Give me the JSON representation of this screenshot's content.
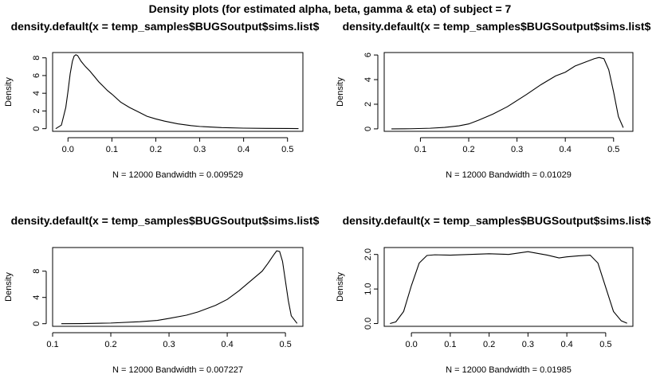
{
  "figure": {
    "title": "Density plots (for estimated alpha, beta, gamma & eta) of subject = 7"
  },
  "chart_data": [
    {
      "type": "line",
      "title": "density.default(x = temp_samples$BUGSoutput$sims.list$",
      "xlabel": "N = 12000   Bandwidth = 0.009529",
      "ylabel": "Density",
      "xlim": [
        -0.035,
        0.535
      ],
      "ylim": [
        -0.3,
        8.6
      ],
      "xticks": [
        0,
        0.1,
        0.2,
        0.3,
        0.4,
        0.5
      ],
      "xtick_labels": [
        "0.0",
        "0.1",
        "0.2",
        "0.3",
        "0.4",
        "0.5"
      ],
      "yticks": [
        0,
        2,
        4,
        6,
        8
      ],
      "ytick_labels": [
        "0",
        "2",
        "4",
        "6",
        "8"
      ],
      "x": [
        -0.028,
        -0.015,
        -0.005,
        0.0,
        0.005,
        0.01,
        0.014,
        0.018,
        0.022,
        0.03,
        0.04,
        0.05,
        0.06,
        0.07,
        0.08,
        0.09,
        0.1,
        0.12,
        0.14,
        0.16,
        0.18,
        0.2,
        0.22,
        0.25,
        0.28,
        0.3,
        0.35,
        0.4,
        0.45,
        0.5,
        0.525
      ],
      "y": [
        0.0,
        0.4,
        2.4,
        4.2,
        6.2,
        7.6,
        8.2,
        8.35,
        8.25,
        7.6,
        7.0,
        6.5,
        5.9,
        5.3,
        4.8,
        4.3,
        3.9,
        3.0,
        2.4,
        1.9,
        1.4,
        1.1,
        0.85,
        0.55,
        0.35,
        0.25,
        0.12,
        0.06,
        0.03,
        0.02,
        0.01
      ]
    },
    {
      "type": "line",
      "title": "density.default(x = temp_samples$BUGSoutput$sims.list$",
      "xlabel": "N = 12000   Bandwidth = 0.01029",
      "ylabel": "Density",
      "xlim": [
        0.025,
        0.54
      ],
      "ylim": [
        -0.2,
        6.2
      ],
      "xticks": [
        0.1,
        0.2,
        0.3,
        0.4,
        0.5
      ],
      "xtick_labels": [
        "0.1",
        "0.2",
        "0.3",
        "0.4",
        "0.5"
      ],
      "yticks": [
        0,
        2,
        4,
        6
      ],
      "ytick_labels": [
        "0",
        "2",
        "4",
        "6"
      ],
      "x": [
        0.04,
        0.08,
        0.12,
        0.15,
        0.18,
        0.2,
        0.22,
        0.25,
        0.28,
        0.3,
        0.32,
        0.35,
        0.38,
        0.4,
        0.42,
        0.44,
        0.46,
        0.47,
        0.48,
        0.49,
        0.5,
        0.51,
        0.52
      ],
      "y": [
        0.0,
        0.01,
        0.05,
        0.12,
        0.25,
        0.4,
        0.7,
        1.2,
        1.8,
        2.3,
        2.8,
        3.6,
        4.3,
        4.6,
        5.1,
        5.4,
        5.7,
        5.8,
        5.7,
        4.8,
        3.0,
        1.0,
        0.1
      ]
    },
    {
      "type": "line",
      "title": "density.default(x = temp_samples$BUGSoutput$sims.list$",
      "xlabel": "N = 12000   Bandwidth = 0.007227",
      "ylabel": "Density",
      "xlim": [
        0.1,
        0.53
      ],
      "ylim": [
        -0.4,
        11.6
      ],
      "xticks": [
        0.1,
        0.2,
        0.3,
        0.4,
        0.5
      ],
      "xtick_labels": [
        "0.1",
        "0.2",
        "0.3",
        "0.4",
        "0.5"
      ],
      "yticks": [
        0,
        4,
        8
      ],
      "ytick_labels": [
        "0",
        "4",
        "8"
      ],
      "x": [
        0.115,
        0.15,
        0.2,
        0.25,
        0.28,
        0.3,
        0.33,
        0.35,
        0.38,
        0.4,
        0.42,
        0.44,
        0.46,
        0.47,
        0.48,
        0.485,
        0.49,
        0.495,
        0.5,
        0.505,
        0.51,
        0.52
      ],
      "y": [
        0.0,
        0.02,
        0.1,
        0.3,
        0.5,
        0.8,
        1.3,
        1.8,
        2.8,
        3.7,
        5.0,
        6.5,
        8.0,
        9.2,
        10.5,
        11.1,
        11.0,
        9.5,
        6.5,
        3.5,
        1.2,
        0.05
      ]
    },
    {
      "type": "line",
      "title": "density.default(x = temp_samples$BUGSoutput$sims.list$",
      "xlabel": "N = 12000   Bandwidth = 0.01985",
      "ylabel": "Density",
      "xlim": [
        -0.07,
        0.57
      ],
      "ylim": [
        -0.08,
        2.2
      ],
      "xticks": [
        0,
        0.1,
        0.2,
        0.3,
        0.4,
        0.5
      ],
      "xtick_labels": [
        "0.0",
        "0.1",
        "0.2",
        "0.3",
        "0.4",
        "0.5"
      ],
      "yticks": [
        0,
        1,
        2
      ],
      "ytick_labels": [
        "0.0",
        "1.0",
        "2.0"
      ],
      "x": [
        -0.055,
        -0.04,
        -0.02,
        0.0,
        0.02,
        0.04,
        0.06,
        0.1,
        0.15,
        0.2,
        0.25,
        0.3,
        0.35,
        0.38,
        0.4,
        0.43,
        0.46,
        0.48,
        0.5,
        0.52,
        0.54,
        0.555
      ],
      "y": [
        0.0,
        0.05,
        0.35,
        1.1,
        1.75,
        1.97,
        1.99,
        1.98,
        2.0,
        2.02,
        2.0,
        2.08,
        1.98,
        1.9,
        1.93,
        1.96,
        1.98,
        1.75,
        1.05,
        0.35,
        0.08,
        0.01
      ]
    }
  ]
}
